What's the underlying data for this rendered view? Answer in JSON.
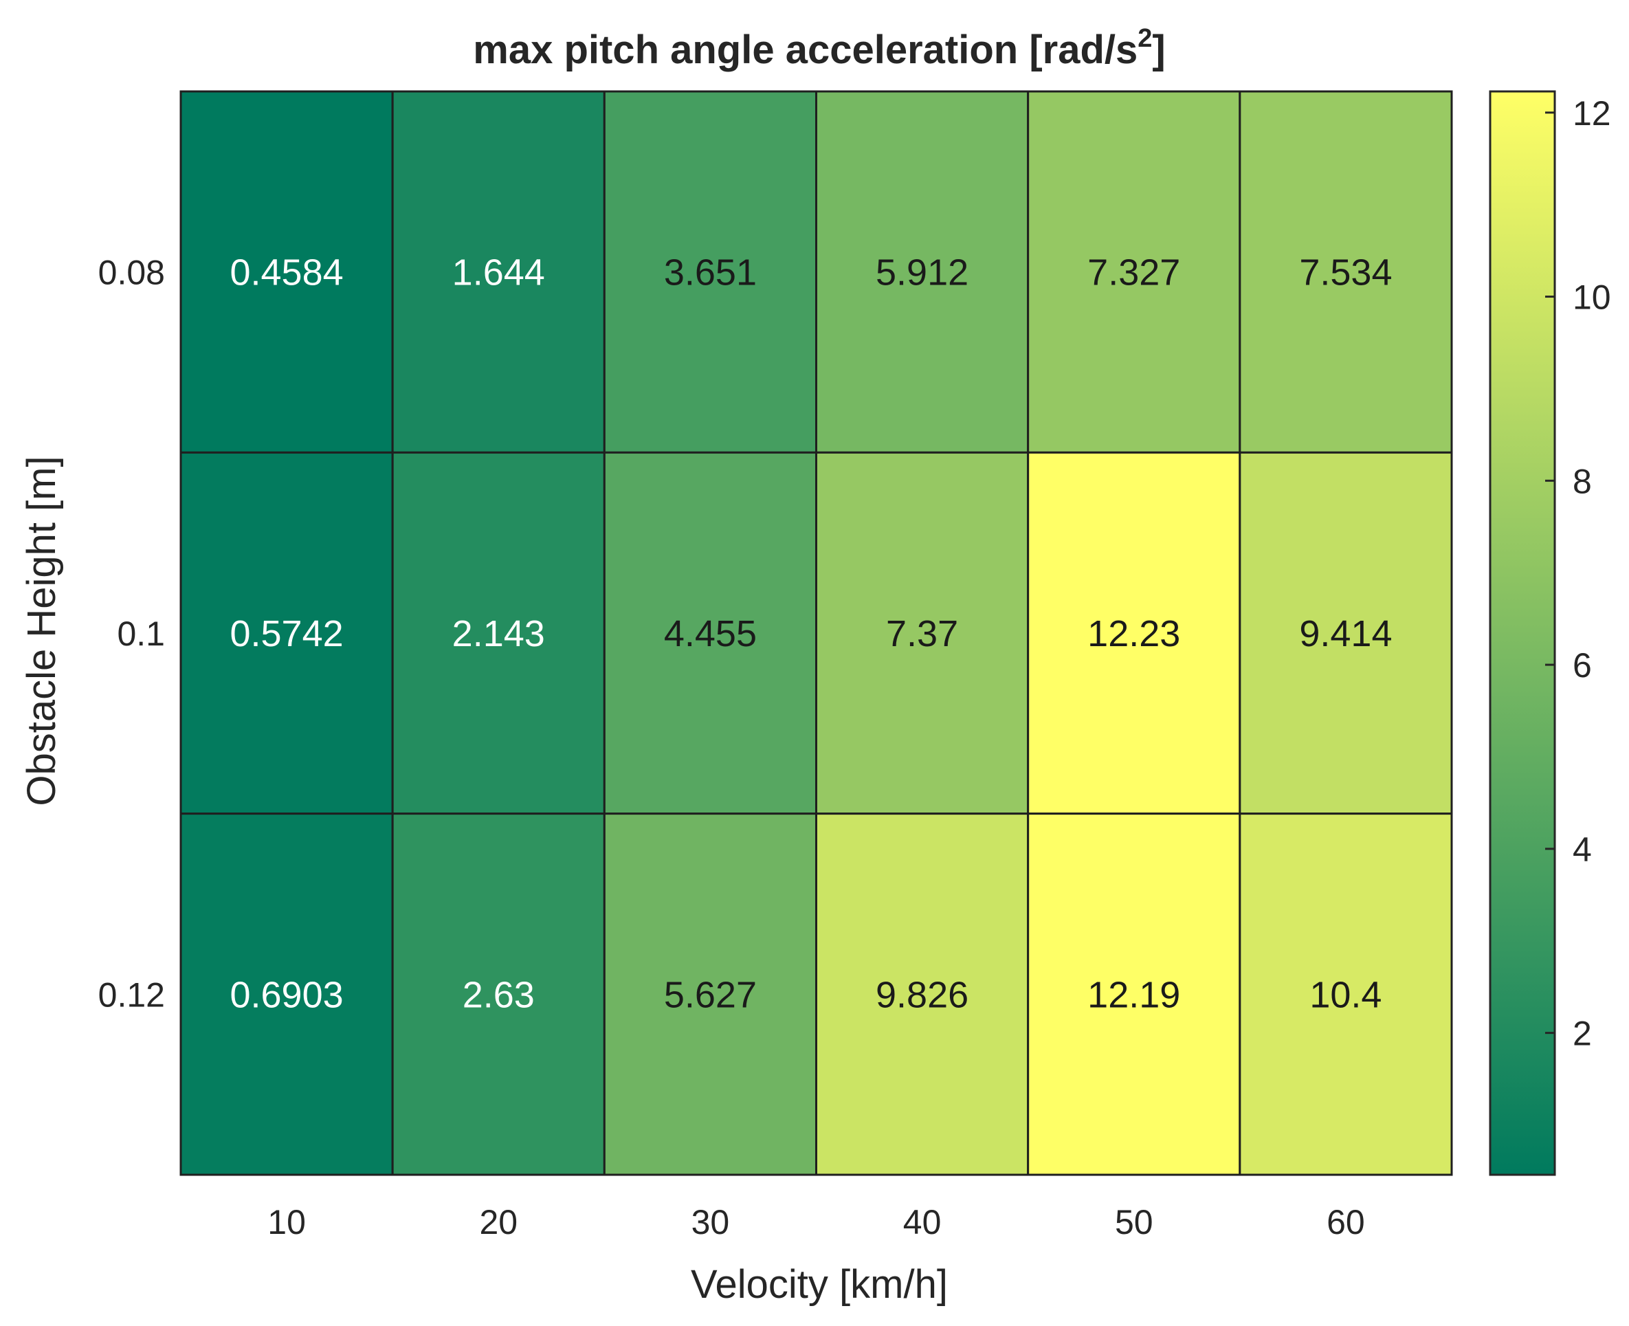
{
  "chart_data": {
    "type": "heatmap",
    "title": "max pitch angle acceleration [rad/s",
    "title_superscript": "2",
    "title_suffix": "]",
    "xlabel": "Velocity [km/h]",
    "ylabel": "Obstacle Height [m]",
    "x_categories": [
      "10",
      "20",
      "30",
      "40",
      "50",
      "60"
    ],
    "y_categories": [
      "0.08",
      "0.1",
      "0.12"
    ],
    "values": [
      [
        0.4584,
        1.644,
        3.651,
        5.912,
        7.327,
        7.534
      ],
      [
        0.5742,
        2.143,
        4.455,
        7.37,
        12.23,
        9.414
      ],
      [
        0.6903,
        2.63,
        5.627,
        9.826,
        12.19,
        10.4
      ]
    ],
    "cell_labels": [
      [
        "0.4584",
        "1.644",
        "3.651",
        "5.912",
        "7.327",
        "7.534"
      ],
      [
        "0.5742",
        "2.143",
        "4.455",
        "7.37",
        "12.23",
        "9.414"
      ],
      [
        "0.6903",
        "2.63",
        "5.627",
        "9.826",
        "12.19",
        "10.4"
      ]
    ],
    "colorbar": {
      "range": [
        0.4584,
        12.23
      ],
      "ticks": [
        2,
        4,
        6,
        8,
        10,
        12
      ],
      "tick_labels": [
        "2",
        "4",
        "6",
        "8",
        "10",
        "12"
      ]
    },
    "colormap": [
      "#007a5e",
      "#ffff66"
    ],
    "label_colors": {
      "dark_cells": "#ffffff",
      "light_cells": "#1a1a1a"
    },
    "grid": true
  }
}
